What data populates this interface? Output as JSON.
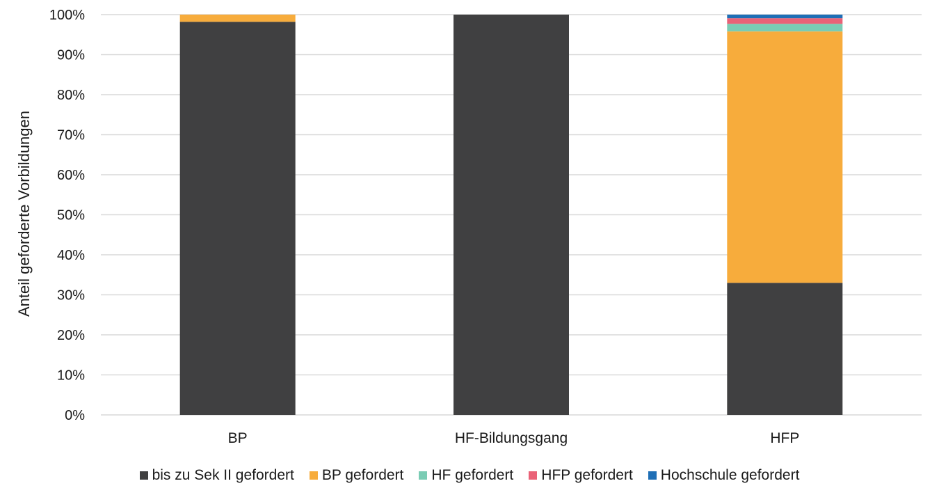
{
  "chart_data": {
    "type": "bar",
    "stacked": true,
    "categories": [
      "BP",
      "HF-Bildungsgang",
      "HFP"
    ],
    "series": [
      {
        "name": "bis zu Sek II gefordert",
        "color": "#404041",
        "values": [
          98.2,
          100,
          33
        ]
      },
      {
        "name": "BP gefordert",
        "color": "#f7ac3c",
        "values": [
          1.8,
          0,
          62.8
        ]
      },
      {
        "name": "HF gefordert",
        "color": "#7accb4",
        "values": [
          0,
          0,
          1.9
        ]
      },
      {
        "name": "HFP gefordert",
        "color": "#ea6277",
        "values": [
          0,
          0,
          1.4
        ]
      },
      {
        "name": "Hochschule gefordert",
        "color": "#1f6fb6",
        "values": [
          0,
          0,
          0.9
        ]
      }
    ],
    "ylabel": "Anteil geforderte Vorbildungen",
    "xlabel": "",
    "ylim": [
      0,
      100
    ],
    "yticks": [
      "0%",
      "10%",
      "20%",
      "30%",
      "40%",
      "50%",
      "60%",
      "70%",
      "80%",
      "90%",
      "100%"
    ],
    "grid": true,
    "legend_position": "bottom"
  }
}
